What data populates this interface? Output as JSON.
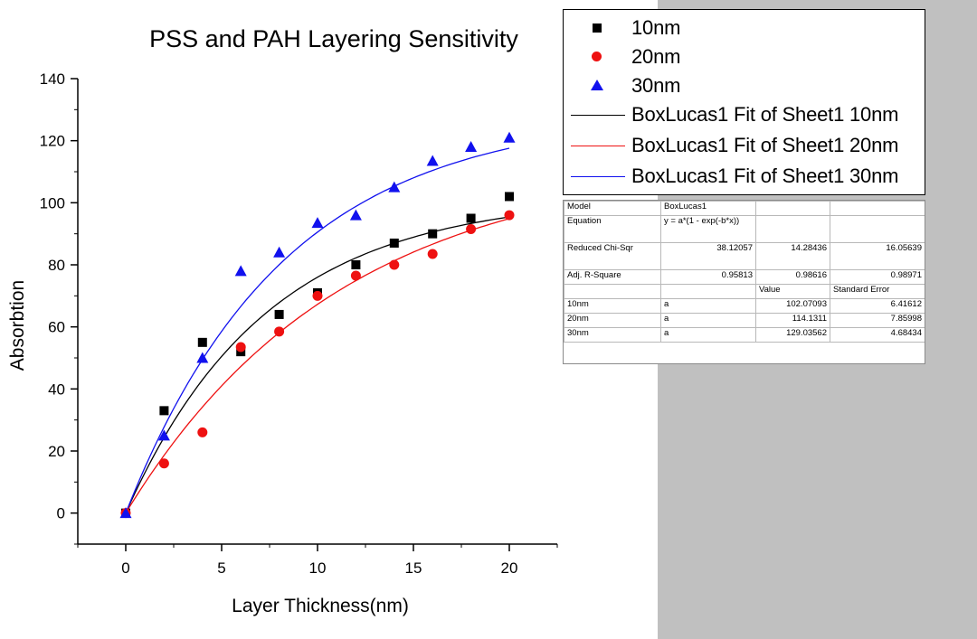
{
  "chart_data": {
    "type": "scatter",
    "title": "PSS and PAH Layering Sensitivity",
    "xlabel": "Layer Thickness(nm)",
    "ylabel": "Absorbtion",
    "xlim": [
      -2.5,
      22.5
    ],
    "ylim": [
      -10,
      140
    ],
    "x_ticks": [
      0,
      5,
      10,
      15,
      20
    ],
    "y_ticks": [
      0,
      20,
      40,
      60,
      80,
      100,
      120,
      140
    ],
    "grid": false,
    "legend_position": "top-right",
    "series": [
      {
        "name": "10nm",
        "marker": "square",
        "color": "#000000",
        "x": [
          0,
          2,
          4,
          6,
          8,
          10,
          12,
          14,
          16,
          18,
          20
        ],
        "y": [
          0,
          33,
          55,
          52,
          64,
          71,
          80,
          87,
          90,
          95,
          102
        ]
      },
      {
        "name": "20nm",
        "marker": "circle",
        "color": "#ee1111",
        "x": [
          0,
          2,
          4,
          6,
          8,
          10,
          12,
          14,
          16,
          18,
          20
        ],
        "y": [
          0,
          16,
          26,
          53.5,
          58.5,
          70,
          76.5,
          80,
          83.5,
          91.5,
          96
        ]
      },
      {
        "name": "30nm",
        "marker": "triangle",
        "color": "#1111ee",
        "x": [
          0,
          2,
          4,
          6,
          8,
          10,
          12,
          14,
          16,
          18,
          20
        ],
        "y": [
          0,
          25,
          50,
          78,
          84,
          93.5,
          96,
          105,
          113.5,
          118,
          121
        ]
      }
    ],
    "fits": [
      {
        "name": "BoxLucas1 Fit of Sheet1 10nm",
        "color": "#000000",
        "a": 102.07093,
        "b": 0.1365
      },
      {
        "name": "BoxLucas1 Fit of Sheet1 20nm",
        "color": "#ee1111",
        "a": 114.1311,
        "b": 0.089
      },
      {
        "name": "BoxLucas1 Fit of Sheet1 30nm",
        "color": "#1111ee",
        "a": 129.03562,
        "b": 0.121
      }
    ]
  },
  "fit_table": {
    "rows": [
      [
        "Model",
        "BoxLucas1",
        "",
        ""
      ],
      [
        "Equation",
        "y = a*(1 - exp(-b*x))",
        "",
        ""
      ],
      [
        "Reduced Chi-Sqr",
        "38.12057",
        "14.28436",
        "16.05639"
      ],
      [
        "Adj. R-Square",
        "0.95813",
        "0.98616",
        "0.98971"
      ],
      [
        "",
        "",
        "Value",
        "Standard Error"
      ],
      [
        "10nm",
        "a",
        "102.07093",
        "6.41612"
      ],
      [
        "20nm",
        "a",
        "114.1311",
        "7.85998"
      ],
      [
        "30nm",
        "a",
        "129.03562",
        "4.68434"
      ]
    ]
  }
}
